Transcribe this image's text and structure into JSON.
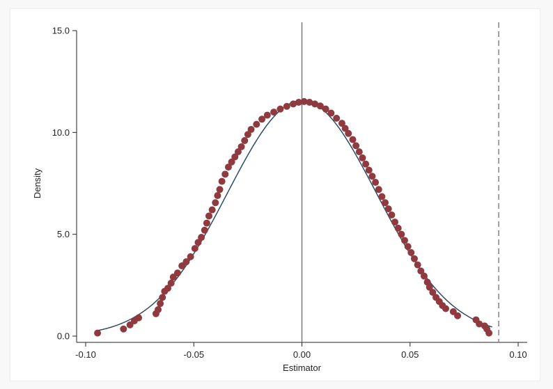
{
  "chart_data": {
    "type": "scatter",
    "xlabel": "Estimator",
    "ylabel": "Density",
    "xlim": [
      -0.1,
      0.1
    ],
    "ylim": [
      0,
      15
    ],
    "x_ticks": [
      -0.1,
      -0.05,
      0,
      0.05,
      0.1
    ],
    "x_tick_labels": [
      "-0.10",
      "-0.05",
      "0.00",
      "0.05",
      "0.10"
    ],
    "y_ticks": [
      0,
      5,
      10,
      15
    ],
    "y_tick_labels": [
      "0.0",
      "5.0",
      "10.0",
      "15.0"
    ],
    "grid": false,
    "reference_lines": [
      {
        "x": 0,
        "style": "solid",
        "color": "#666666"
      },
      {
        "x": 0.091,
        "style": "dashed",
        "color": "#8a8a8a"
      }
    ],
    "normal_curve": {
      "mean": 0,
      "sd": 0.0345,
      "x_range": [
        -0.095,
        0.088
      ],
      "color": "#2f4a66"
    },
    "series": [
      {
        "color": "#8f3a3f",
        "points": [
          [
            -0.0945,
            0.15
          ],
          [
            -0.0825,
            0.35
          ],
          [
            -0.0795,
            0.55
          ],
          [
            -0.0775,
            0.75
          ],
          [
            -0.0755,
            0.9
          ],
          [
            -0.0675,
            1.1
          ],
          [
            -0.0665,
            1.3
          ],
          [
            -0.0655,
            1.6
          ],
          [
            -0.0645,
            1.9
          ],
          [
            -0.0635,
            2.2
          ],
          [
            -0.062,
            2.35
          ],
          [
            -0.0605,
            2.6
          ],
          [
            -0.0595,
            2.9
          ],
          [
            -0.0575,
            3.1
          ],
          [
            -0.0555,
            3.45
          ],
          [
            -0.0535,
            3.65
          ],
          [
            -0.0515,
            3.9
          ],
          [
            -0.0495,
            4.3
          ],
          [
            -0.048,
            4.6
          ],
          [
            -0.0465,
            4.85
          ],
          [
            -0.045,
            5.2
          ],
          [
            -0.044,
            5.55
          ],
          [
            -0.043,
            5.9
          ],
          [
            -0.0415,
            6.2
          ],
          [
            -0.04,
            6.55
          ],
          [
            -0.039,
            6.9
          ],
          [
            -0.038,
            7.2
          ],
          [
            -0.037,
            7.6
          ],
          [
            -0.0355,
            7.95
          ],
          [
            -0.034,
            8.3
          ],
          [
            -0.0325,
            8.55
          ],
          [
            -0.031,
            8.8
          ],
          [
            -0.0295,
            9.05
          ],
          [
            -0.028,
            9.3
          ],
          [
            -0.0265,
            9.6
          ],
          [
            -0.025,
            9.9
          ],
          [
            -0.0235,
            10.15
          ],
          [
            -0.021,
            10.4
          ],
          [
            -0.0185,
            10.65
          ],
          [
            -0.016,
            10.85
          ],
          [
            -0.013,
            11.0
          ],
          [
            -0.01,
            11.15
          ],
          [
            -0.007,
            11.28
          ],
          [
            -0.004,
            11.4
          ],
          [
            -0.0015,
            11.48
          ],
          [
            0.001,
            11.52
          ],
          [
            0.0035,
            11.48
          ],
          [
            0.006,
            11.4
          ],
          [
            0.0085,
            11.3
          ],
          [
            0.011,
            11.15
          ],
          [
            0.0135,
            10.95
          ],
          [
            0.016,
            10.7
          ],
          [
            0.0185,
            10.45
          ],
          [
            0.02,
            10.2
          ],
          [
            0.0215,
            9.95
          ],
          [
            0.0235,
            9.65
          ],
          [
            0.025,
            9.35
          ],
          [
            0.0265,
            9.05
          ],
          [
            0.028,
            8.75
          ],
          [
            0.0295,
            8.45
          ],
          [
            0.031,
            8.15
          ],
          [
            0.0325,
            7.85
          ],
          [
            0.034,
            7.55
          ],
          [
            0.0355,
            7.2
          ],
          [
            0.037,
            6.85
          ],
          [
            0.0385,
            6.55
          ],
          [
            0.04,
            6.25
          ],
          [
            0.0415,
            5.95
          ],
          [
            0.043,
            5.6
          ],
          [
            0.0445,
            5.3
          ],
          [
            0.046,
            5.0
          ],
          [
            0.0475,
            4.7
          ],
          [
            0.049,
            4.4
          ],
          [
            0.0505,
            4.1
          ],
          [
            0.052,
            3.8
          ],
          [
            0.0535,
            3.5
          ],
          [
            0.055,
            3.2
          ],
          [
            0.0565,
            2.95
          ],
          [
            0.058,
            2.65
          ],
          [
            0.059,
            2.4
          ],
          [
            0.0605,
            2.15
          ],
          [
            0.062,
            1.9
          ],
          [
            0.0635,
            1.7
          ],
          [
            0.065,
            1.5
          ],
          [
            0.0665,
            1.35
          ],
          [
            0.07,
            1.2
          ],
          [
            0.072,
            1.0
          ],
          [
            0.0805,
            0.8
          ],
          [
            0.082,
            0.6
          ],
          [
            0.0845,
            0.5
          ],
          [
            0.0855,
            0.35
          ],
          [
            0.0865,
            0.15
          ]
        ]
      }
    ]
  }
}
